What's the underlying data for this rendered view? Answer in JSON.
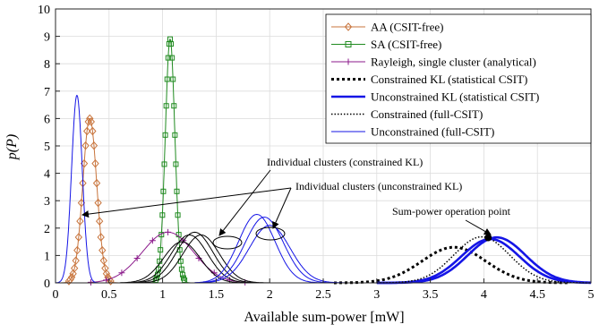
{
  "chart_data": {
    "type": "line",
    "xlabel": "Available sum-power [mW]",
    "ylabel": "p(P)",
    "xlim": [
      0,
      5
    ],
    "ylim": [
      0,
      10
    ],
    "x_ticks": [
      0,
      0.5,
      1,
      1.5,
      2,
      2.5,
      3,
      3.5,
      4,
      4.5,
      5
    ],
    "x_tick_labels": [
      "0",
      "0.5",
      "1",
      "1.5",
      "2",
      "2.5",
      "3",
      "3.5",
      "4",
      "4.5",
      "5"
    ],
    "y_ticks": [
      0,
      1,
      2,
      3,
      4,
      5,
      6,
      7,
      8,
      9,
      10
    ],
    "y_tick_labels": [
      "0",
      "1",
      "2",
      "3",
      "4",
      "5",
      "6",
      "7",
      "8",
      "9",
      "10"
    ],
    "grid": true,
    "legend_position": "top-right",
    "legend": [
      "AA (CSIT-free)",
      "SA (CSIT-free)",
      "Rayleigh, single cluster (analytical)",
      "Constrained KL (statistical CSIT)",
      "Unconstrained KL (statistical CSIT)",
      "Constrained (full-CSIT)",
      "Unconstrained (full-CSIT)"
    ],
    "series": [
      {
        "name": "AA (CSIT-free)",
        "color": "#C8743C",
        "marker": "diamond",
        "peaks": [
          {
            "mean": 0.32,
            "sigma": 0.065,
            "peak": 6.0
          }
        ],
        "x_range": [
          0.0,
          0.85
        ]
      },
      {
        "name": "SA (CSIT-free)",
        "color": "#1F8A1F",
        "marker": "square",
        "peaks": [
          {
            "mean": 1.07,
            "sigma": 0.045,
            "peak": 8.9
          }
        ],
        "x_range": [
          0.85,
          1.3
        ]
      },
      {
        "name": "Rayleigh, single cluster (analytical)",
        "color": "#8B1A8B",
        "marker": "plus",
        "peaks": [
          {
            "mean": 1.05,
            "sigma": 0.24,
            "peak": 1.85
          }
        ],
        "x_range": [
          0.3,
          1.9
        ]
      },
      {
        "name": "Constrained KL (statistical CSIT)",
        "color": "#000000",
        "style": "dashed-thick",
        "peaks": [
          {
            "mean": 3.72,
            "sigma": 0.3,
            "peak": 1.3
          }
        ],
        "x_range": [
          2.6,
          4.8
        ]
      },
      {
        "name": "Unconstrained KL (statistical CSIT)",
        "color": "#1515E6",
        "style": "solid-thick",
        "peaks": [
          {
            "mean": 4.06,
            "sigma": 0.27,
            "peak": 1.6
          },
          {
            "mean": 4.12,
            "sigma": 0.27,
            "peak": 1.66
          }
        ],
        "x_range": [
          3.0,
          5.0
        ]
      },
      {
        "name": "Constrained (full-CSIT)",
        "color": "#000000",
        "style": "dotted",
        "peaks": [
          {
            "mean": 3.98,
            "sigma": 0.26,
            "peak": 1.68
          }
        ],
        "x_range": [
          3.0,
          5.0
        ]
      },
      {
        "name": "Unconstrained (full-CSIT)",
        "color": "#1515E6",
        "style": "solid-thin",
        "peaks": [
          {
            "mean": 0.2,
            "sigma": 0.05,
            "peak": 6.85
          }
        ],
        "x_range": [
          0.0,
          0.6
        ]
      },
      {
        "name": "Individual clusters (constrained KL)",
        "color": "#000000",
        "style": "solid-thin",
        "peaks": [
          {
            "mean": 1.18,
            "sigma": 0.17,
            "peak": 1.5
          },
          {
            "mean": 1.25,
            "sigma": 0.17,
            "peak": 1.75
          },
          {
            "mean": 1.3,
            "sigma": 0.17,
            "peak": 1.85
          },
          {
            "mean": 1.36,
            "sigma": 0.17,
            "peak": 1.75
          }
        ],
        "x_range": [
          0.6,
          2.0
        ]
      },
      {
        "name": "Individual clusters (unconstrained KL)",
        "color": "#1515E6",
        "style": "solid-thin",
        "peaks": [
          {
            "mean": 1.88,
            "sigma": 0.17,
            "peak": 2.5
          },
          {
            "mean": 1.95,
            "sigma": 0.18,
            "peak": 2.4
          },
          {
            "mean": 2.0,
            "sigma": 0.19,
            "peak": 2.1
          }
        ],
        "x_range": [
          1.3,
          2.7
        ]
      }
    ],
    "annotations": [
      {
        "text": "Individual clusters (constrained KL)"
      },
      {
        "text": "Individual clusters (unconstrained KL)"
      },
      {
        "text": "Sum-power operation point",
        "point": [
          4.04,
          1.65
        ]
      }
    ]
  }
}
